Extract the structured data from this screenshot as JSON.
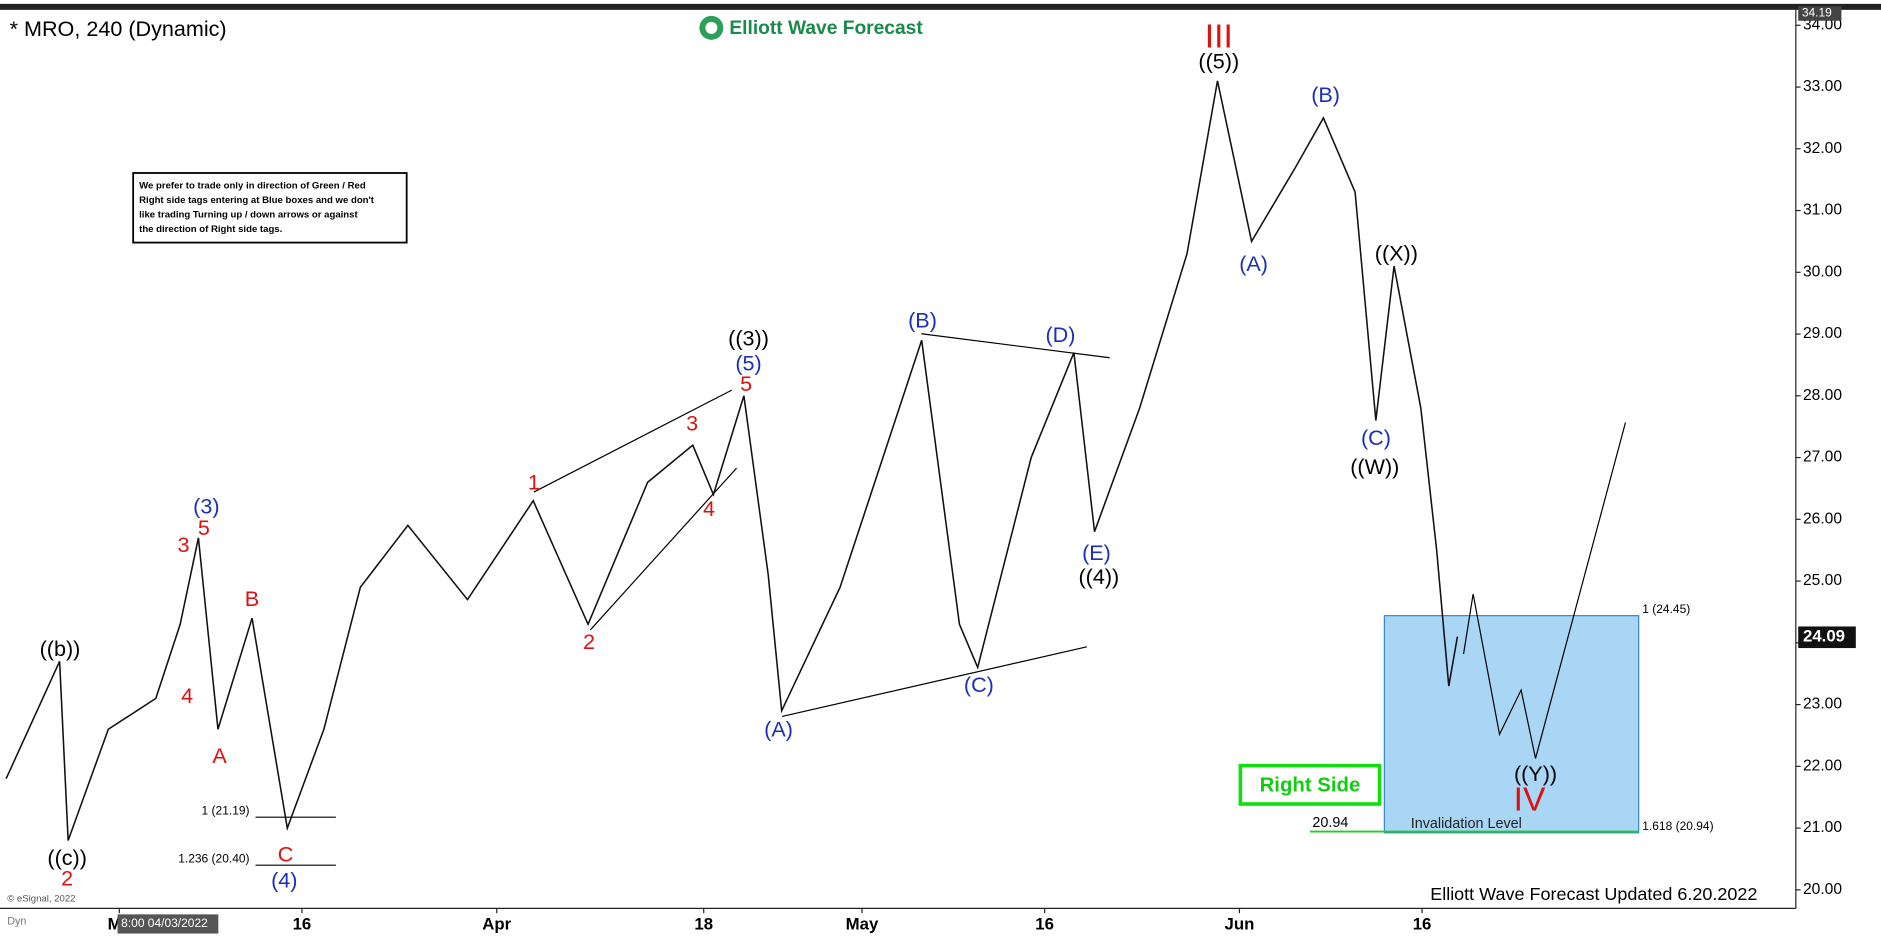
{
  "chart_data": {
    "type": "line",
    "title": "* MRO, 240 (Dynamic)",
    "logo": "Elliott Wave Forecast",
    "note_lines": [
      "We prefer to trade only in direction of Green / Red",
      "Right side tags entering at Blue boxes and we don't",
      "like trading Turning up / down arrows or against",
      "the direction of Right side tags."
    ],
    "button": "Right Side",
    "footer": "Elliott Wave Forecast Updated 6.20.2022",
    "copyright": "© eSignal, 2022",
    "corner_tag": "Dyn",
    "cursor_label": "8:00 04/03/2022",
    "high_tag": 34.19,
    "last_price": 24.09,
    "invalidation_value": 20.94,
    "invalidation_text": "Invalidation Level",
    "box_labels": [
      "1 (24.45)",
      "1.618 (20.94)"
    ],
    "fib_labels": [
      "1 (21.19)",
      "1.236 (20.40)"
    ],
    "color": "#111111",
    "x": [
      50.7,
      55.1,
      55.8,
      59.1,
      63.0,
      65.0,
      66.5,
      68.1,
      70.9,
      73.8,
      76.8,
      79.8,
      83.7,
      88.6,
      94.0,
      98.5,
      103.4,
      107.1,
      108.8,
      111.3,
      113.3,
      114.4,
      119.2,
      125.9,
      129.0,
      130.5,
      134.9,
      138.4,
      140.1,
      143.8,
      147.7,
      150.2,
      153.0,
      156.6,
      158.9,
      161.5,
      163.2,
      164.7,
      166.9,
      168.2,
      169.2,
      169.9
    ],
    "values": [
      21.8,
      23.7,
      20.8,
      22.6,
      23.1,
      24.3,
      25.7,
      22.6,
      24.4,
      21.0,
      22.6,
      24.9,
      25.9,
      24.7,
      26.3,
      24.3,
      26.6,
      27.2,
      26.4,
      28.0,
      25.1,
      22.9,
      24.9,
      28.9,
      24.3,
      23.6,
      27.0,
      28.7,
      25.8,
      27.8,
      30.3,
      33.1,
      30.5,
      31.7,
      32.5,
      31.3,
      27.6,
      30.1,
      27.8,
      25.5,
      23.3,
      24.1
    ],
    "xlim": [
      50.2,
      197.7
    ],
    "xticks": [
      {
        "value": 60,
        "label": "Ma"
      },
      {
        "value": 75,
        "label": "16"
      },
      {
        "value": 91,
        "label": "Apr"
      },
      {
        "value": 108,
        "label": "18"
      },
      {
        "value": 121,
        "label": "May"
      },
      {
        "value": 136,
        "label": "16"
      },
      {
        "value": 152,
        "label": "Jun"
      },
      {
        "value": 167,
        "label": "16"
      }
    ],
    "ylim": [
      19.7,
      34.25
    ],
    "yticks": [
      {
        "value": 20,
        "label": "20.00"
      },
      {
        "value": 21,
        "label": "21.00"
      },
      {
        "value": 22,
        "label": "22.00"
      },
      {
        "value": 23,
        "label": "23.00"
      },
      {
        "value": 24,
        "label": "24.00"
      },
      {
        "value": 25,
        "label": "25.00"
      },
      {
        "value": 26,
        "label": "26.00"
      },
      {
        "value": 27,
        "label": "27.00"
      },
      {
        "value": 28,
        "label": "28.00"
      },
      {
        "value": 29,
        "label": "29.00"
      },
      {
        "value": 30,
        "label": "30.00"
      },
      {
        "value": 31,
        "label": "31.00"
      },
      {
        "value": 32,
        "label": "32.00"
      },
      {
        "value": 33,
        "label": "33.00"
      },
      {
        "value": 34,
        "label": "34.00"
      }
    ],
    "annotations": [
      {
        "text": "((b))",
        "color": "#000000"
      },
      {
        "text": "((c))",
        "color": "#000000"
      },
      {
        "text": "((3))",
        "color": "#000000"
      },
      {
        "text": "((5))",
        "color": "#000000"
      },
      {
        "text": "((4))",
        "color": "#000000"
      },
      {
        "text": "((X))",
        "color": "#000000"
      },
      {
        "text": "((W))",
        "color": "#000000"
      },
      {
        "text": "((Y))",
        "color": "#000000"
      },
      {
        "text": "(3)",
        "color": "#1a2fb8"
      },
      {
        "text": "(4)",
        "color": "#1a2fb8"
      },
      {
        "text": "(5)",
        "color": "#1a2fb8"
      },
      {
        "text": "(A)",
        "color": "#1a2fb8"
      },
      {
        "text": "(B)",
        "color": "#1a2fb8"
      },
      {
        "text": "(C)",
        "color": "#1a2fb8"
      },
      {
        "text": "(D)",
        "color": "#1a2fb8"
      },
      {
        "text": "(E)",
        "color": "#1a2fb8"
      },
      {
        "text": "(A)",
        "color": "#1a2fb8"
      },
      {
        "text": "(B)",
        "color": "#1a2fb8"
      },
      {
        "text": "(C)",
        "color": "#1a2fb8"
      },
      {
        "text": "3",
        "color": "#dd1111"
      },
      {
        "text": "5",
        "color": "#dd1111"
      },
      {
        "text": "4",
        "color": "#dd1111"
      },
      {
        "text": "2",
        "color": "#dd1111"
      },
      {
        "text": "A",
        "color": "#dd1111"
      },
      {
        "text": "B",
        "color": "#dd1111"
      },
      {
        "text": "C",
        "color": "#dd1111"
      },
      {
        "text": "1",
        "color": "#dd1111"
      },
      {
        "text": "2",
        "color": "#dd1111"
      },
      {
        "text": "3",
        "color": "#dd1111"
      },
      {
        "text": "4",
        "color": "#dd1111"
      },
      {
        "text": "5",
        "color": "#dd1111"
      },
      {
        "text": "III",
        "color": "#dd1111"
      },
      {
        "text": "IV",
        "color": "#dd1111"
      }
    ]
  }
}
